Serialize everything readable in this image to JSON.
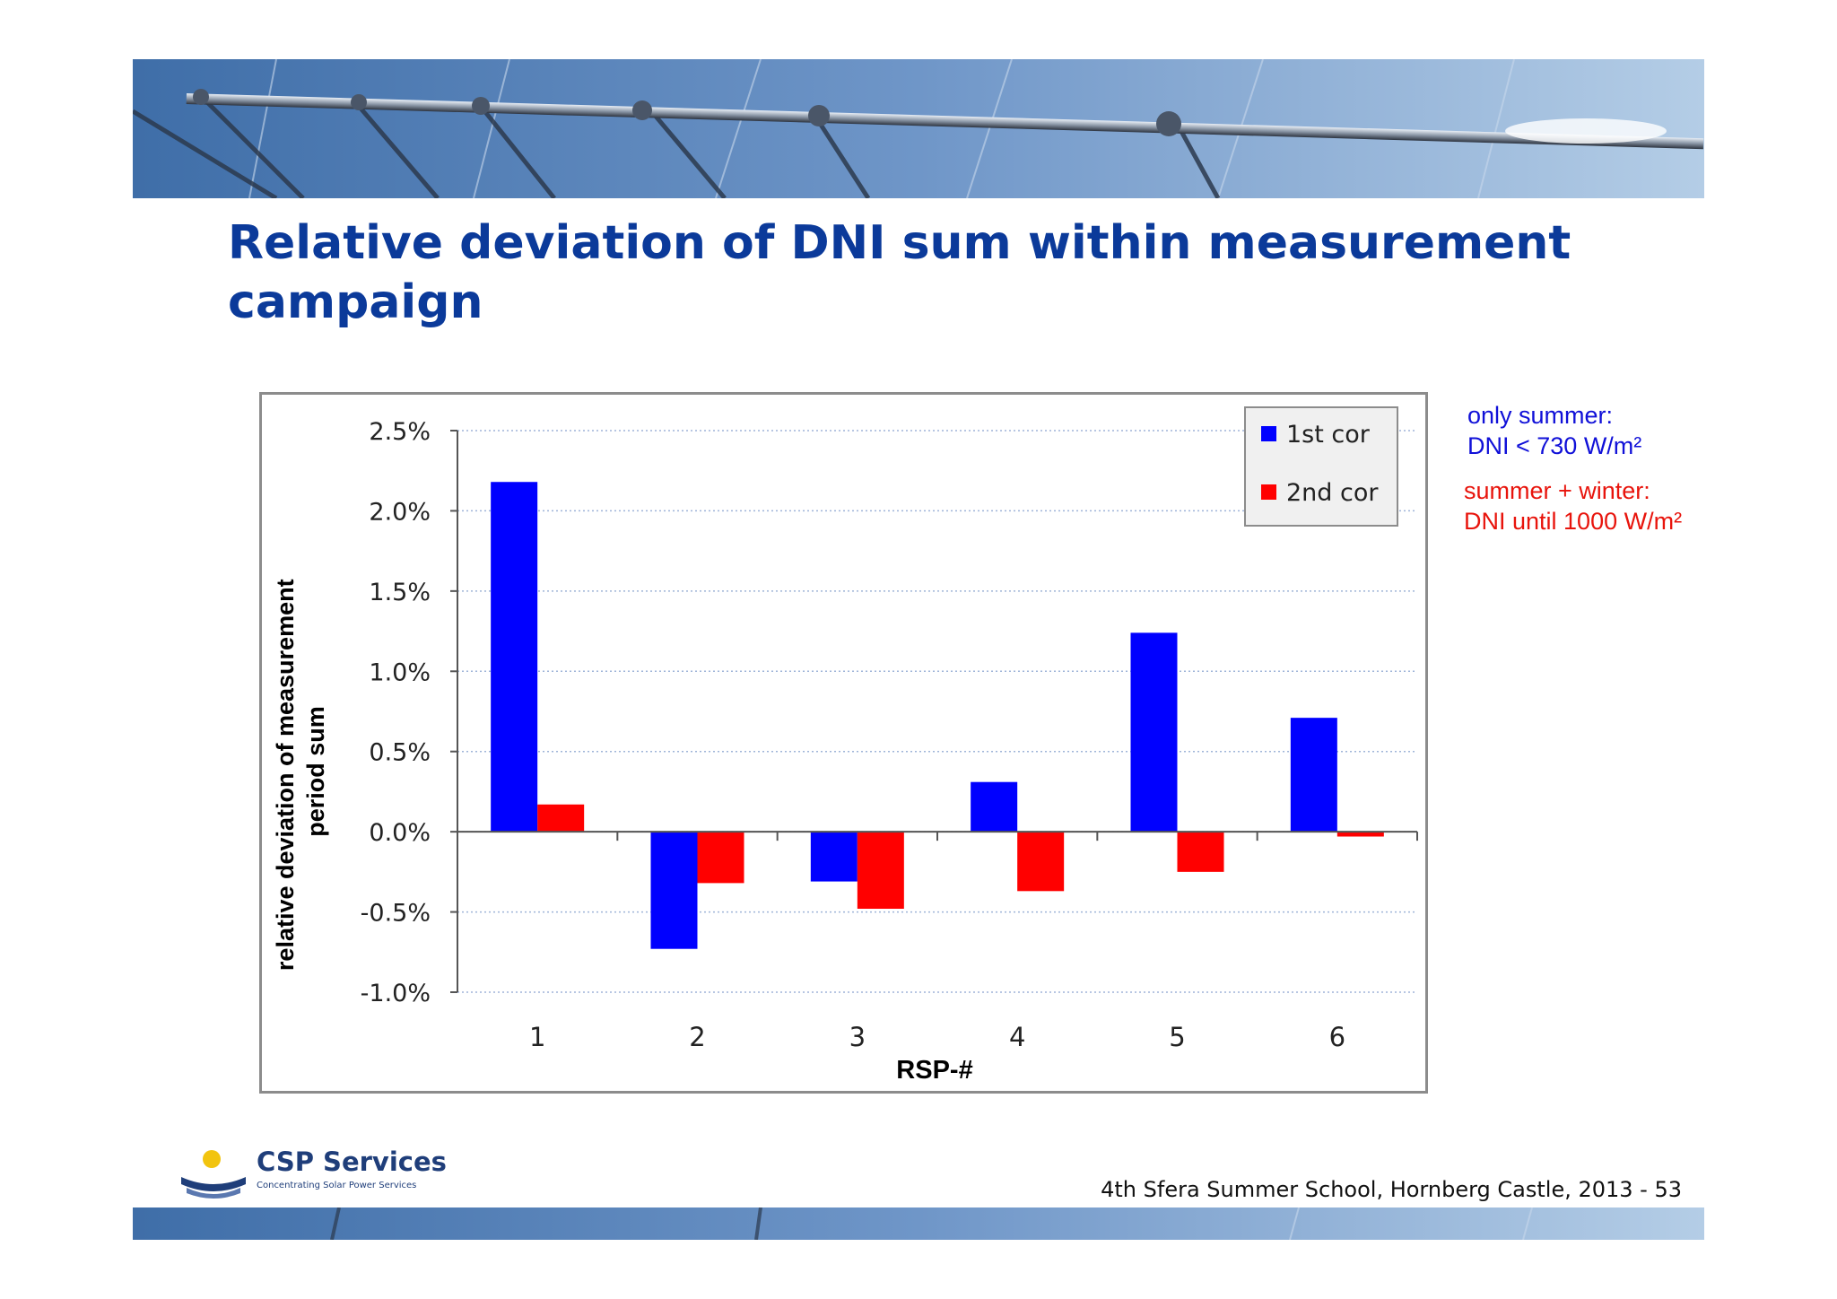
{
  "slide": {
    "title": "Relative deviation of DNI sum within measurement campaign",
    "notes": {
      "blue_line1": "only summer:",
      "blue_line2": "DNI < 730 W/m²",
      "red_line1": "summer + winter:",
      "red_line2": "DNI until 1000 W/m²"
    },
    "footer": "4th Sfera Summer School, Hornberg Castle, 2013   - 53",
    "logo": {
      "name": "CSP Services",
      "tagline": "Concentrating Solar Power Services"
    }
  },
  "colors": {
    "title": "#0b3a9a",
    "series_1": "#0000ff",
    "series_2": "#ff0000"
  },
  "chart_data": {
    "type": "bar",
    "title": "",
    "xlabel": "RSP-#",
    "ylabel": "relative deviation of measurement period sum",
    "categories": [
      "1",
      "2",
      "3",
      "4",
      "5",
      "6"
    ],
    "series": [
      {
        "name": "1st cor",
        "color": "#0000ff",
        "values": [
          2.18,
          -0.73,
          -0.31,
          0.31,
          1.24,
          0.71
        ]
      },
      {
        "name": "2nd cor",
        "color": "#ff0000",
        "values": [
          0.17,
          -0.32,
          -0.48,
          -0.37,
          -0.25,
          -0.03
        ]
      }
    ],
    "ylim": [
      -1.0,
      2.5
    ],
    "yticks": [
      "-1.0%",
      "-0.5%",
      "0.0%",
      "0.5%",
      "1.0%",
      "1.5%",
      "2.0%",
      "2.5%"
    ],
    "ytick_values": [
      -1.0,
      -0.5,
      0.0,
      0.5,
      1.0,
      1.5,
      2.0,
      2.5
    ],
    "grid": true,
    "legend_position": "top-right"
  }
}
